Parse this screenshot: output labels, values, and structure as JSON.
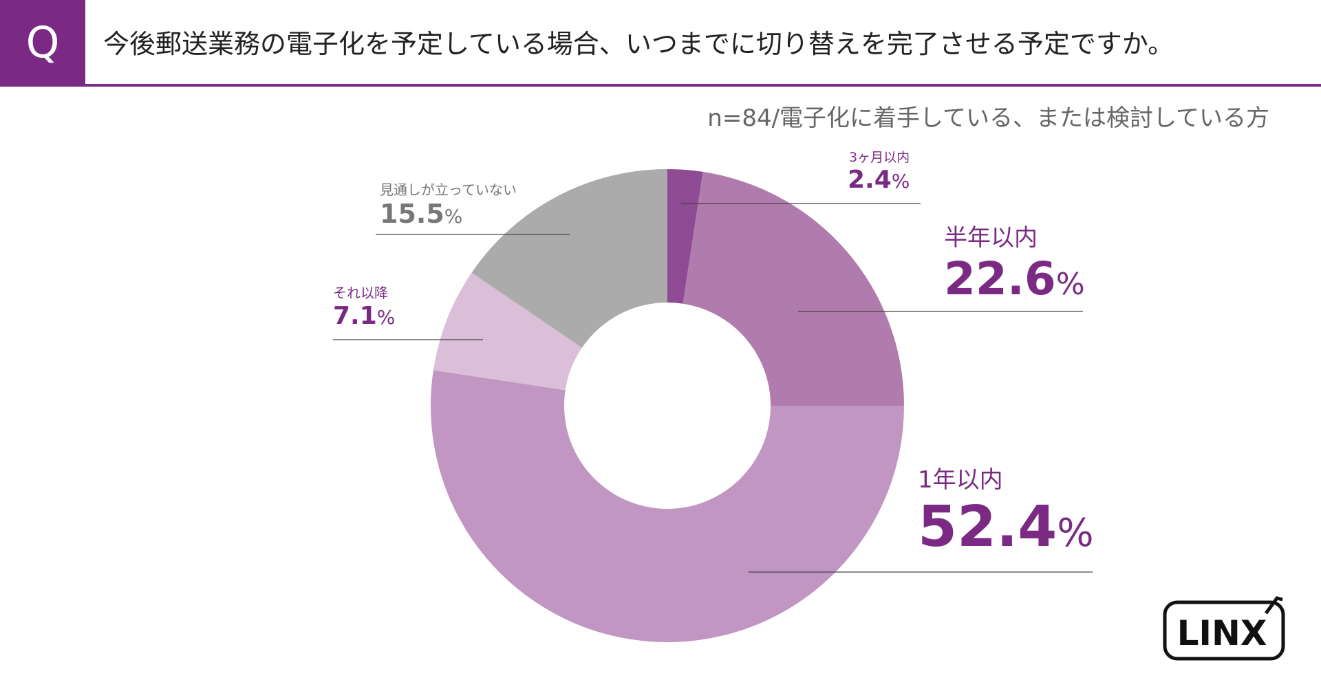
{
  "header": {
    "q_label": "Q",
    "question": "今後郵送業務の電子化を予定している場合、いつまでに切り替えを完了させる予定ですか。"
  },
  "sample_note": "n=84/電子化に着手している、または検討している方",
  "colors": {
    "brand": "#7b2a84",
    "slice_3months": "#8e4a92",
    "slice_half_year": "#b07bad",
    "slice_1year": "#c296c2",
    "slice_later": "#dbbfd9",
    "slice_no_prospect": "#ababab",
    "gray_text": "#777777"
  },
  "chart_data": {
    "type": "pie",
    "variant": "donut",
    "title": "今後郵送業務の電子化を予定している場合、いつまでに切り替えを完了させる予定ですか。",
    "n": 84,
    "start": "top",
    "direction": "clockwise",
    "unit": "%",
    "slices": [
      {
        "key": "3months",
        "label": "3ヶ月以内",
        "value": 2.4,
        "value_text": "2.4",
        "color": "#8e4a92"
      },
      {
        "key": "half_year",
        "label": "半年以内",
        "value": 22.6,
        "value_text": "22.6",
        "color": "#b07bad"
      },
      {
        "key": "one_year",
        "label": "1年以内",
        "value": 52.4,
        "value_text": "52.4",
        "color": "#c296c2"
      },
      {
        "key": "later",
        "label": "それ以降",
        "value": 7.1,
        "value_text": "7.1",
        "color": "#dbbfd9"
      },
      {
        "key": "no_prospect",
        "label": "見通しが立っていない",
        "value": 15.5,
        "value_text": "15.5",
        "color": "#ababab"
      }
    ]
  },
  "logo": {
    "text": "LINX"
  }
}
